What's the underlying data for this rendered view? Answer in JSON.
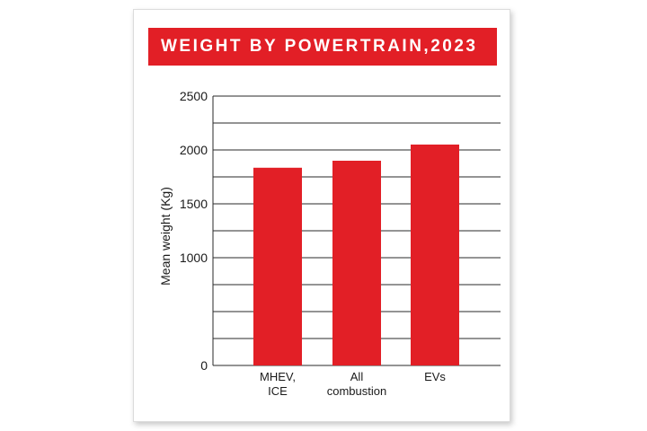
{
  "chart_data": {
    "type": "bar",
    "title": "WEIGHT BY POWERTRAIN,2023",
    "ylabel": "Mean weight (Kg)",
    "xlabel": "",
    "categories": [
      [
        "MHEV,",
        "ICE"
      ],
      [
        "All",
        "combustion"
      ],
      [
        "EVs"
      ]
    ],
    "values": [
      1835,
      1900,
      2050
    ],
    "ylim": [
      0,
      2500
    ],
    "yticks": [
      0,
      500,
      1000,
      1500,
      2000,
      2500
    ],
    "ytick_labels": [
      "0",
      "",
      "1000",
      "1500",
      "2000",
      "2500"
    ],
    "grid": true,
    "bar_color": "#e21f26"
  },
  "colors": {
    "accent": "#e21f26",
    "grid": "#2a2a2a",
    "text": "#1a1a1a"
  }
}
